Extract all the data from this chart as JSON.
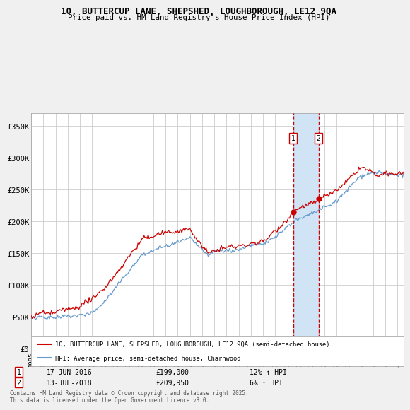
{
  "title_line1": "10, BUTTERCUP LANE, SHEPSHED, LOUGHBOROUGH, LE12 9QA",
  "title_line2": "Price paid vs. HM Land Registry's House Price Index (HPI)",
  "ylabel_ticks": [
    "£0",
    "£50K",
    "£100K",
    "£150K",
    "£200K",
    "£250K",
    "£300K",
    "£350K"
  ],
  "ylim": [
    0,
    370000
  ],
  "xlim_start": 1995.0,
  "xlim_end": 2025.5,
  "transaction1_date": "17-JUN-2016",
  "transaction1_price": 199000,
  "transaction1_price_str": "£199,000",
  "transaction1_hpi": "12% ↑ HPI",
  "transaction1_x": 2016.46,
  "transaction2_date": "13-JUL-2018",
  "transaction2_price": 209950,
  "transaction2_price_str": "£209,950",
  "transaction2_hpi": "6% ↑ HPI",
  "transaction2_x": 2018.54,
  "legend_line1": "10, BUTTERCUP LANE, SHEPSHED, LOUGHBOROUGH, LE12 9QA (semi-detached house)",
  "legend_line2": "HPI: Average price, semi-detached house, Charnwood",
  "footer": "Contains HM Land Registry data © Crown copyright and database right 2025.\nThis data is licensed under the Open Government Licence v3.0.",
  "price_color": "#cc0000",
  "hpi_color": "#6699cc",
  "background_color": "#f0f0f0",
  "plot_bg_color": "#ffffff",
  "grid_color": "#cccccc",
  "vline_color": "#cc0000",
  "shade_color": "#d0e4f5"
}
